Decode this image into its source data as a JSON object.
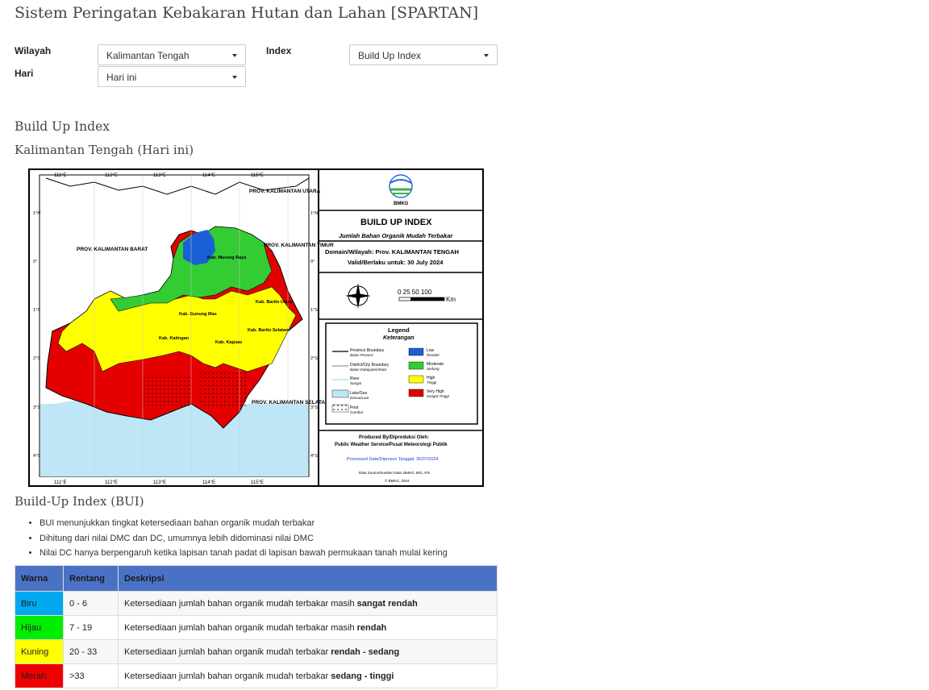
{
  "page_title": "Sistem Peringatan Kebakaran Hutan dan Lahan [SPARTAN]",
  "filters": {
    "wilayah_label": "Wilayah",
    "wilayah_value": "Kalimantan Tengah",
    "hari_label": "Hari",
    "hari_value": "Hari ini",
    "index_label": "Index",
    "index_value": "Build Up Index"
  },
  "section_title": "Build Up Index",
  "section_subtitle": "Kalimantan Tengah (Hari ini)",
  "map": {
    "title": "BUILD UP INDEX",
    "subtitle": "Jumlah Bahan Organik Mudah Terbakar",
    "domain_line": "Domain/Wilayah: Prov. KALIMANTAN TENGAH",
    "valid_line": "Valid/Berlaku untuk: 30 July 2024",
    "scale": "0  25 50     100",
    "scale_unit": "Km",
    "legend_title": "Legend",
    "legend_subtitle": "Keterangan",
    "legend_items": [
      {
        "label": "Province Boundary",
        "sub": "Batas Provinsi"
      },
      {
        "label": "District/City Boundary",
        "sub": "Batas Kabupaten/Kota"
      },
      {
        "label": "River",
        "sub": "Sungai"
      },
      {
        "label": "Lake/Sea",
        "sub": "Danau/Laut"
      },
      {
        "label": "Peat",
        "sub": "Gambut"
      }
    ],
    "legend_colors": [
      {
        "label": "Low",
        "sub": "Rendah",
        "color": "#1a5fd6"
      },
      {
        "label": "Moderate",
        "sub": "Sedang",
        "color": "#33cc33"
      },
      {
        "label": "High",
        "sub": "Tinggi",
        "color": "#ffff00"
      },
      {
        "label": "Very High",
        "sub": "Sangat Tinggi",
        "color": "#e00000"
      }
    ],
    "produced_by": "Produced By/Diproduksi Oleh:",
    "producer": "Public Weather Service/Pusat Meteorologi Publik",
    "processed": "Processed Date/Diproses Tanggal: 30/07/2024",
    "data_source": "Data Source/Sumber Data: BMKG, BIG, IFS",
    "copyright": "© BMKG, 2024",
    "logo_text": "BMKG",
    "lon_ticks": [
      "111°E",
      "112°E",
      "113°E",
      "114°E",
      "115°E"
    ],
    "lat_ticks": [
      "1°N",
      "0°",
      "1°S",
      "2°S",
      "3°S",
      "4°S"
    ],
    "region_labels": {
      "kalbar": "PROV. KALIMANTAN BARAT",
      "kaltim": "PROV. KALIMANTAN TIMUR",
      "kalut": "PROV. KALIMANTAN UTARA",
      "kalsel": "PROV. KALIMANTAN SELATAN",
      "murung": "Kab. Murung Raya",
      "barito_utara": "Kab. Barito Utara",
      "gunung_mas": "Kab. Gunung Mas",
      "katingan": "Kab. Katingan",
      "kapuas": "Kab. Kapuas",
      "barito_selatan": "Kab. Barito Selatan"
    }
  },
  "bui": {
    "heading": "Build-Up Index (BUI)",
    "notes": [
      "BUI menunjukkan tingkat ketersediaan bahan organik mudah terbakar",
      "Dihitung dari nilai DMC dan DC, umumnya lebih didominasi nilai DMC",
      "Nilai DC hanya berpengaruh ketika lapisan tanah padat di lapisan bawah permukaan tanah mulai kering"
    ],
    "table_headers": [
      "Warna",
      "Rentang",
      "Deskripsi"
    ],
    "rows": [
      {
        "warna": "Biru",
        "color": "#00a8f0",
        "rentang": "0 - 6",
        "desc": "Ketersediaan jumlah bahan organik mudah terbakar masih ",
        "bold": "sangat rendah"
      },
      {
        "warna": "Hijau",
        "color": "#00ee00",
        "rentang": "7 - 19",
        "desc": "Ketersediaan jumlah bahan organik mudah terbakar masih ",
        "bold": "rendah"
      },
      {
        "warna": "Kuning",
        "color": "#ffff00",
        "rentang": "20 - 33",
        "desc": "Ketersediaan jumlah bahan organik mudah terbakar ",
        "bold": "rendah - sedang"
      },
      {
        "warna": "Merah",
        "color": "#ee0000",
        "rentang": ">33",
        "desc": "Ketersediaan jumlah bahan organik mudah terbakar ",
        "bold": "sedang - tinggi"
      }
    ]
  }
}
